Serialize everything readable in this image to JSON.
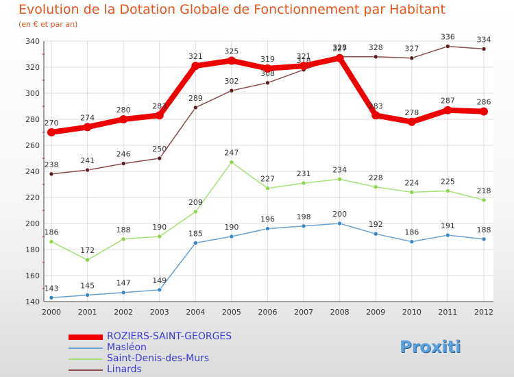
{
  "title": "Evolution de la Dotation Globale de Fonctionnement par Habitant",
  "subtitle": "(en € et par an)",
  "logo_text": "Proxiti",
  "colors": {
    "title": "#e4541b",
    "legend_text": "#3b3bd6",
    "grid": "#dddddd",
    "tick_text": "#333333"
  },
  "chart_data": {
    "type": "line",
    "title": "Evolution de la Dotation Globale de Fonctionnement par Habitant",
    "subtitle": "(en € et par an)",
    "xlabel": "",
    "ylabel": "",
    "x": [
      "2000",
      "2001",
      "2002",
      "2003",
      "2004",
      "2005",
      "2006",
      "2007",
      "2008",
      "2009",
      "2010",
      "2011",
      "2012"
    ],
    "ylim": [
      140,
      340
    ],
    "yticks": [
      140,
      160,
      180,
      200,
      220,
      240,
      260,
      280,
      300,
      320,
      340
    ],
    "grid": true,
    "legend_position": "bottom-left",
    "series": [
      {
        "name": "ROZIERS-SAINT-GEORGES",
        "color": "#ee0000",
        "marker": "#ee0000",
        "emphasis": true,
        "values": [
          270,
          274,
          280,
          283,
          321,
          325,
          319,
          321,
          327,
          283,
          278,
          287,
          286
        ],
        "labels": [
          "270",
          "274",
          "280",
          "283",
          "321",
          "325",
          "319",
          "321",
          "327",
          "283",
          "278",
          "287",
          "286"
        ]
      },
      {
        "name": "Masléon",
        "color": "#6aa0d0",
        "marker": "#3d86c6",
        "emphasis": false,
        "values": [
          143,
          145,
          147,
          149,
          185,
          190,
          196,
          198,
          200,
          192,
          186,
          191,
          188
        ],
        "labels": [
          "143",
          "145",
          "147",
          "149",
          "185",
          "190",
          "196",
          "198",
          "200",
          "192",
          "186",
          "191",
          "188"
        ]
      },
      {
        "name": "Saint-Denis-des-Murs",
        "color": "#a6e07a",
        "marker": "#8cd44a",
        "emphasis": false,
        "values": [
          186,
          172,
          188,
          190,
          209,
          247,
          227,
          231,
          234,
          228,
          224,
          225,
          218
        ],
        "labels": [
          "186",
          "172",
          "188",
          "190",
          "209",
          "247",
          "227",
          "231",
          "234",
          "228",
          "224",
          "225",
          "218"
        ]
      },
      {
        "name": "Linards",
        "color": "#8a4a4a",
        "marker": "#5a1e1e",
        "emphasis": false,
        "values": [
          238,
          241,
          246,
          250,
          289,
          302,
          308,
          318,
          328,
          328,
          327,
          336,
          334
        ],
        "labels": [
          "238",
          "241",
          "246",
          "250",
          "289",
          "302",
          "308",
          "318",
          "328",
          "328",
          "327",
          "336",
          "334"
        ]
      }
    ]
  }
}
